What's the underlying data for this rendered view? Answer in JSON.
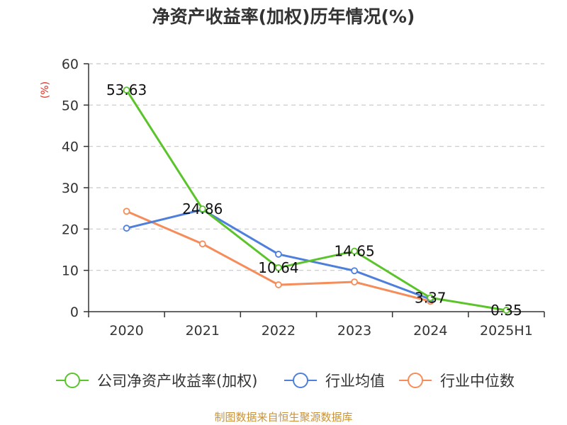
{
  "title": "净资产收益率(加权)历年情况(%)",
  "source_text": "制图数据来自恒生聚源数据库",
  "chart_data": {
    "type": "line",
    "title": "净资产收益率(加权)历年情况(%)",
    "ylabel": "(%)",
    "xlabel": "",
    "ylim": [
      0,
      60
    ],
    "yticks": [
      0,
      10,
      20,
      30,
      40,
      50,
      60
    ],
    "grid": "horizontal dashed",
    "legend_position": "bottom",
    "categories": [
      "2020",
      "2021",
      "2022",
      "2023",
      "2024",
      "2025H1"
    ],
    "series": [
      {
        "name": "公司净资产收益率(加权)",
        "color": "#5cc42b",
        "values": [
          53.63,
          24.86,
          10.64,
          14.65,
          3.37,
          0.35
        ],
        "labels": [
          "53.63",
          "24.86",
          "10.64",
          "14.65",
          "3.37",
          "0.35"
        ]
      },
      {
        "name": "行业均值",
        "color": "#4f7fdc",
        "values": [
          20.2,
          24.7,
          13.9,
          9.9,
          3.0,
          null
        ]
      },
      {
        "name": "行业中位数",
        "color": "#f58c5a",
        "values": [
          24.3,
          16.4,
          6.5,
          7.2,
          2.5,
          null
        ]
      }
    ]
  }
}
